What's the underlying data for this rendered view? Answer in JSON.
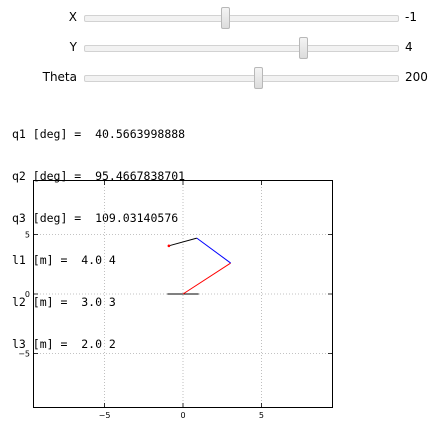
{
  "sliders": [
    {
      "label": "X",
      "value": -1,
      "display": "-1",
      "min": -10,
      "max": 10
    },
    {
      "label": "Y",
      "value": 4,
      "display": "4",
      "min": -10,
      "max": 10
    },
    {
      "label": "Theta",
      "value": 200,
      "display": "200",
      "min": 0,
      "max": 360
    }
  ],
  "readout": {
    "q1": "q1 [deg] =  40.5663998888",
    "q2": "q2 [deg] =  95.4667838701",
    "q3": "q3 [deg] =  109.03140576",
    "l1": "l1 [m] =  4.0 4",
    "l2": "l2 [m] =  3.0 3",
    "l3": "l3 [m] =  2.0 2"
  },
  "chart_data": {
    "type": "line",
    "xlim": [
      -9.5,
      9.5
    ],
    "ylim": [
      -9.5,
      9.5
    ],
    "xticks": [
      -5,
      0,
      5
    ],
    "yticks": [
      -5,
      0,
      5
    ],
    "xtick_labels": [
      "−5",
      "0",
      "5"
    ],
    "ytick_labels": [
      "−5",
      "0",
      "5"
    ],
    "grid": true,
    "series": [
      {
        "color": "#000000",
        "x": [
          -1,
          1
        ],
        "y": [
          0,
          0
        ]
      },
      {
        "color": "#ff0000",
        "x": [
          0,
          3.04
        ],
        "y": [
          0,
          2.6
        ]
      },
      {
        "color": "#0000ff",
        "x": [
          3.04,
          0.88
        ],
        "y": [
          2.6,
          4.7
        ]
      },
      {
        "color": "#000000",
        "x": [
          0.88,
          -0.9
        ],
        "y": [
          4.7,
          4.05
        ]
      }
    ],
    "markers": [
      {
        "color": "#ff0000",
        "x": -0.9,
        "y": 4.05
      }
    ]
  }
}
